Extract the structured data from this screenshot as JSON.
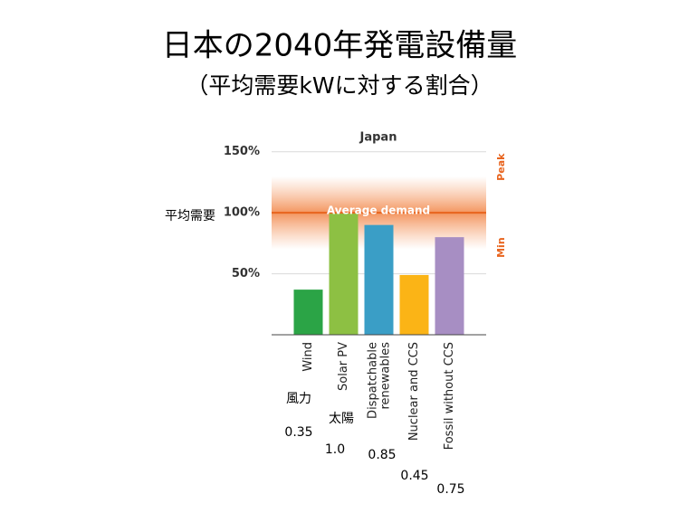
{
  "header": {
    "title": "日本の2040年発電設備量",
    "subtitle": "（平均需要kWに対する割合）"
  },
  "chart_data": {
    "type": "bar",
    "title": "Japan",
    "categories": [
      "Wind",
      "Solar PV",
      "Dispatchable renewables",
      "Nuclear and CCS",
      "Fossil without CCS"
    ],
    "values": [
      37,
      100,
      90,
      49,
      80
    ],
    "colors": [
      "#2ba446",
      "#8dc043",
      "#3a9ec6",
      "#fbb416",
      "#a78ec3"
    ],
    "ylim": [
      0,
      155
    ],
    "yticks": [
      {
        "value": 50,
        "label": "50%"
      },
      {
        "value": 100,
        "label": "100%"
      },
      {
        "value": 150,
        "label": "150%"
      }
    ],
    "grid": true,
    "reference": {
      "value": 100,
      "label": "Average demand",
      "band": [
        70,
        130
      ],
      "high_label": "Peak",
      "low_label": "Min",
      "left_label": "平均需要",
      "color": "#e8641e"
    },
    "annotations": [
      "風力",
      "0.35",
      "太陽",
      "1.0",
      "0.85",
      "0.45",
      "0.75"
    ]
  }
}
